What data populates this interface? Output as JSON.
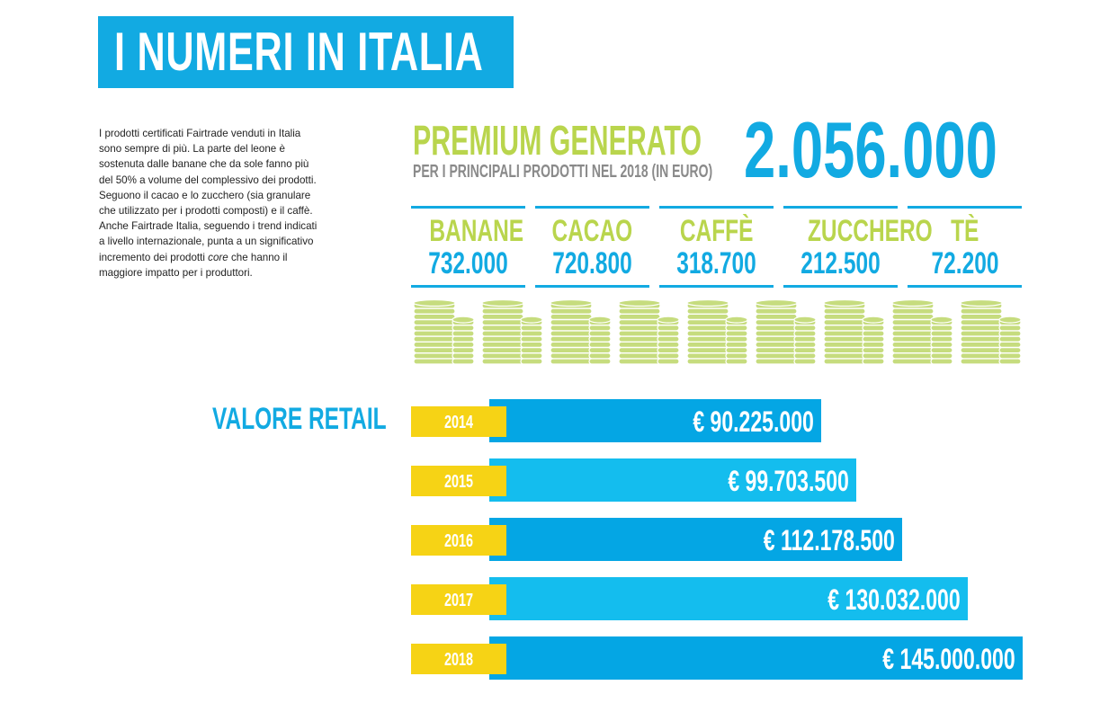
{
  "title": "I NUMERI IN ITALIA",
  "intro": [
    "I prodotti certificati Fairtrade venduti in Italia",
    "sono sempre di più. La parte del leone è",
    "sostenuta dalle banane che da sole fanno più",
    "del 50% a volume del complessivo dei prodotti.",
    "Seguono il cacao e lo zucchero (sia granulare",
    "che utilizzato per i prodotti composti) e il caffè.",
    "Anche Fairtrade Italia, seguendo i trend indicati",
    "a livello internazionale, punta a un significativo",
    "incremento dei prodotti core che hanno il",
    "maggiore impatto per i produttori."
  ],
  "premium": {
    "title": "PREMIUM GENERATO",
    "subtitle": "PER I PRINCIPALI PRODOTTI NEL 2018 (IN EURO)",
    "total": "2.056.000"
  },
  "products": [
    {
      "name": "BANANE",
      "value": "732.000"
    },
    {
      "name": "CACAO",
      "value": "720.800"
    },
    {
      "name": "CAFFÈ",
      "value": "318.700"
    },
    {
      "name": "ZUCCHERO",
      "value": "212.500"
    },
    {
      "name": "TÈ",
      "value": "72.200"
    }
  ],
  "retail_label": "VALORE RETAIL",
  "colors": {
    "blue": "#12aae2",
    "blue_dark": "#04a6e4",
    "blue_light": "#14bdee",
    "green": "#b9d54d",
    "yellow": "#f6d315",
    "coin": "#c6dc7e"
  },
  "chart_data": {
    "type": "bar",
    "orientation": "horizontal",
    "categories": [
      "2014",
      "2015",
      "2016",
      "2017",
      "2018"
    ],
    "values": [
      90225000,
      99703500,
      112178500,
      130032000,
      145000000
    ],
    "labels": [
      "€ 90.225.000",
      "€ 99.703.500",
      "€ 112.178.500",
      "€ 130.032.000",
      "€ 145.000.000"
    ],
    "title": "VALORE RETAIL",
    "xlabel": "",
    "ylabel": "",
    "xlim": [
      0,
      145000000
    ],
    "grid": false,
    "legend": "none"
  }
}
